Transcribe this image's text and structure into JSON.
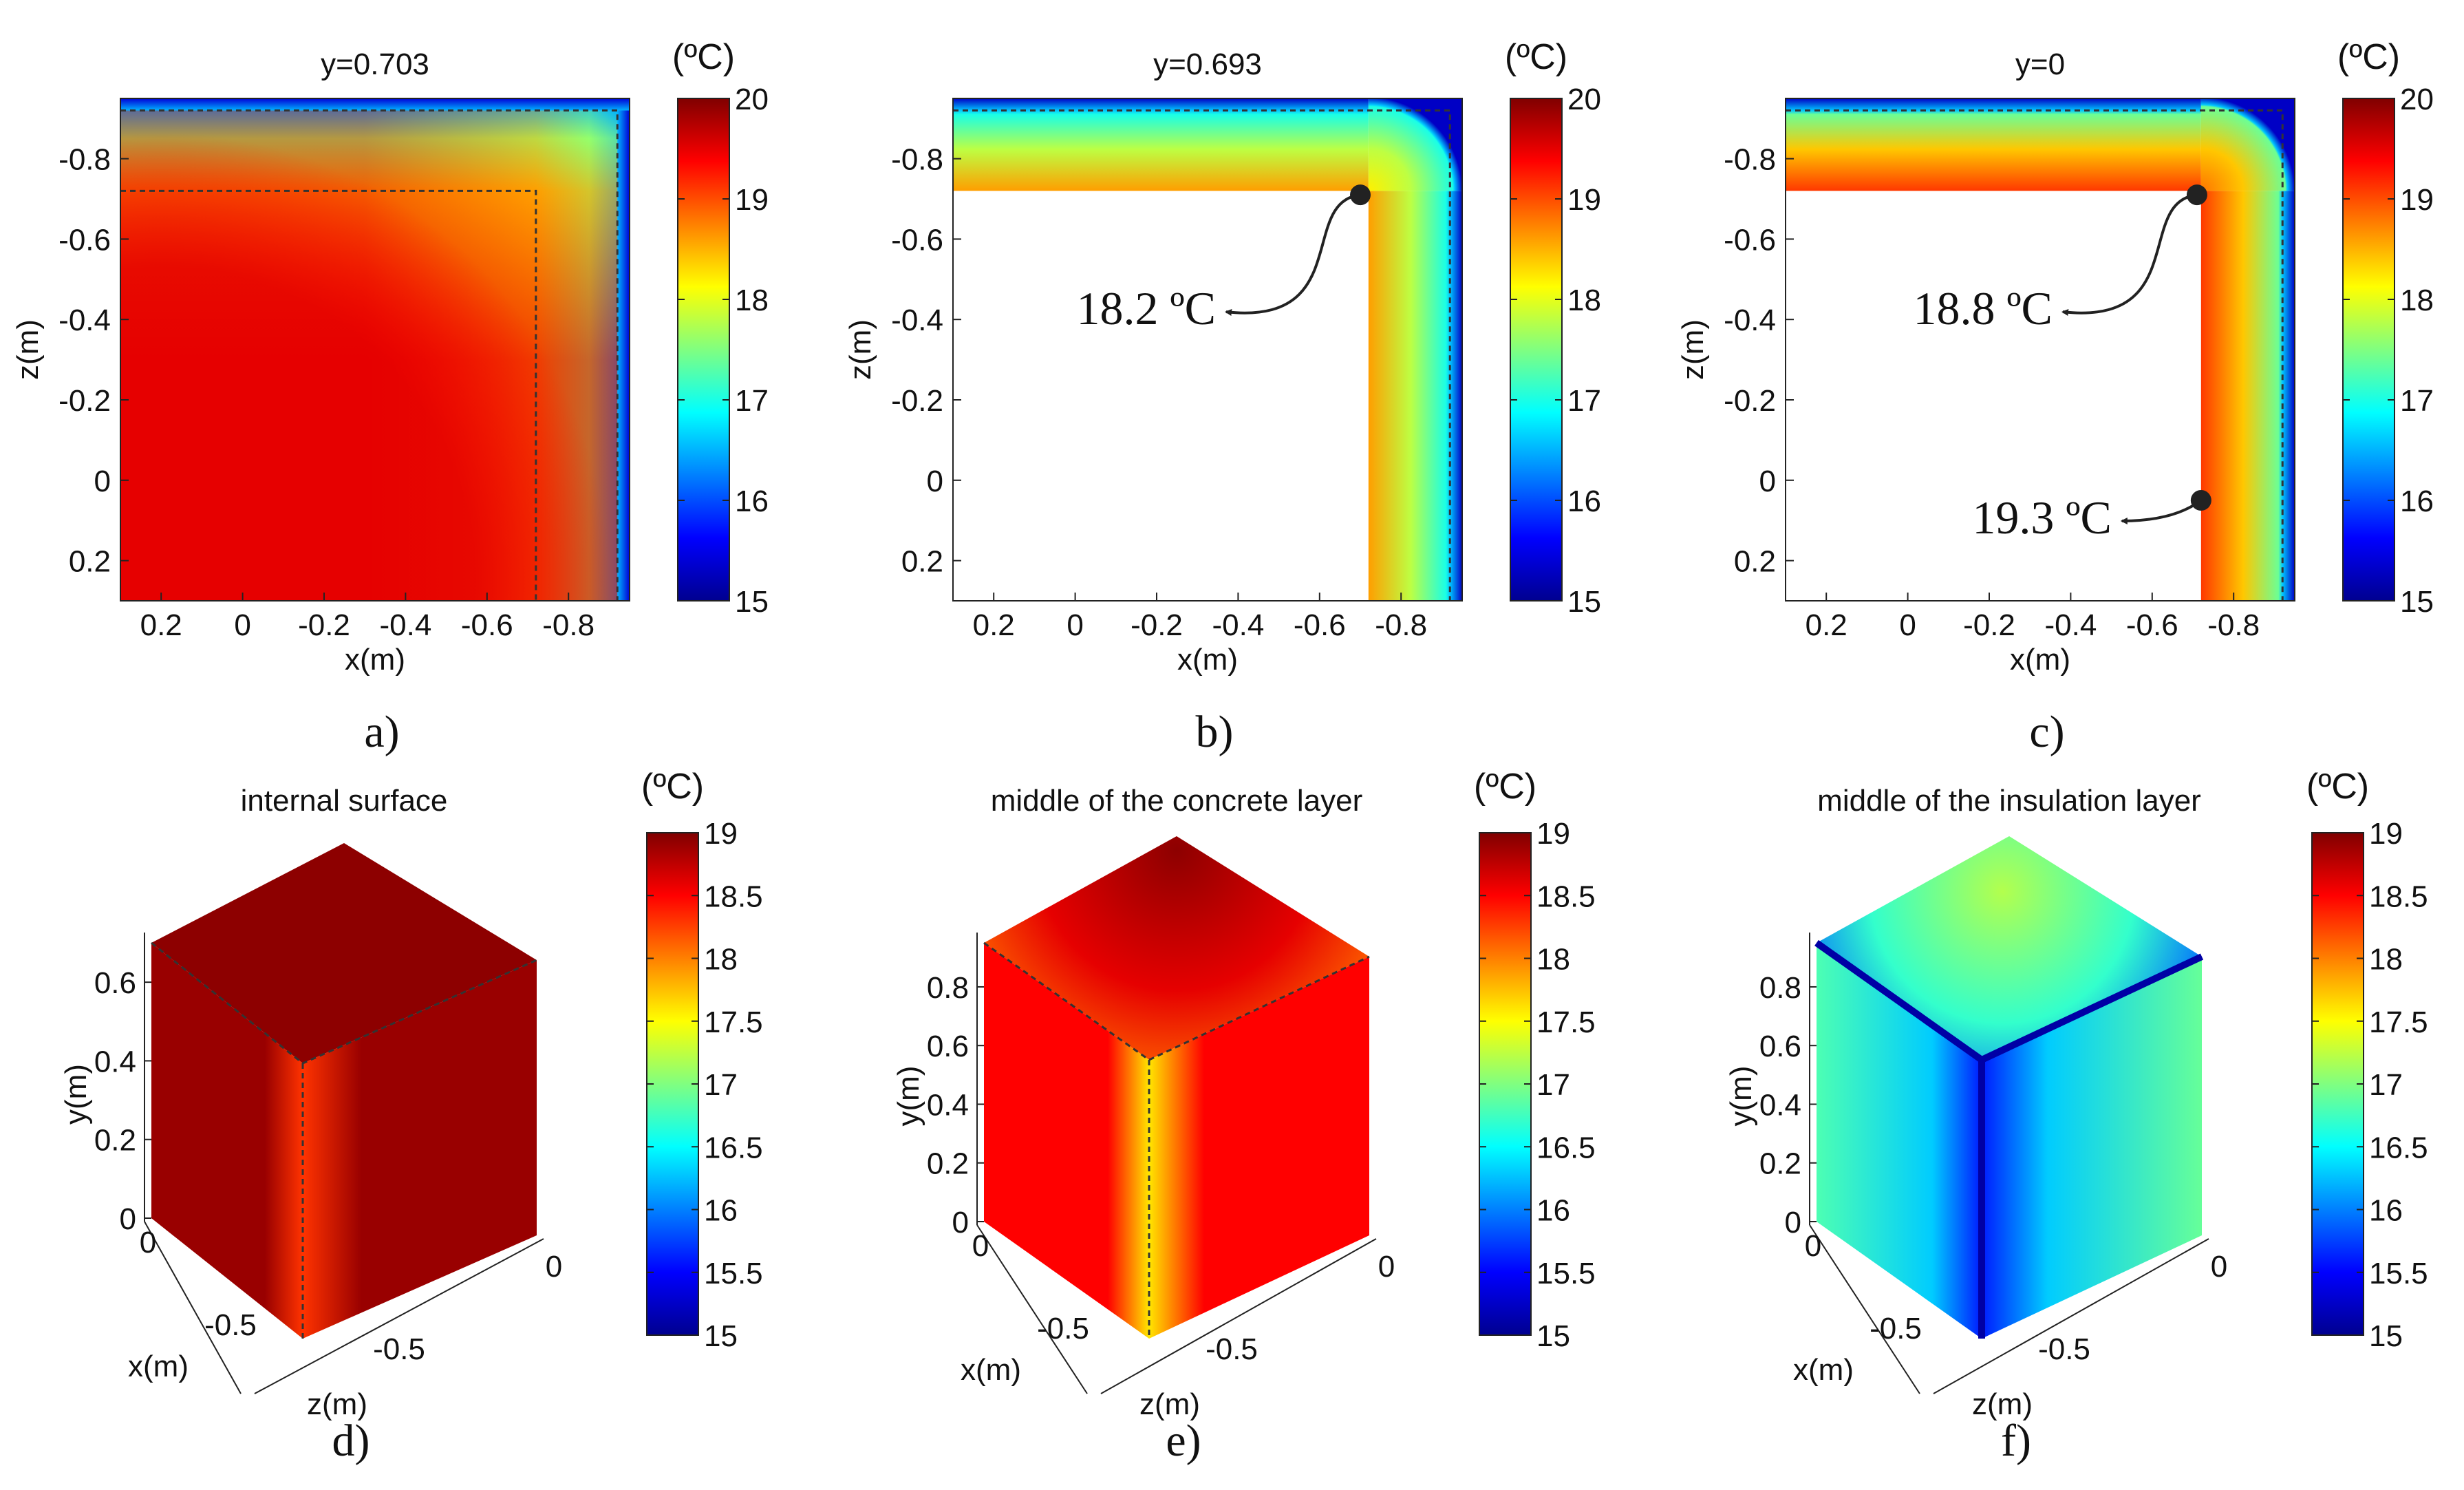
{
  "colors": {
    "jet": [
      "#00008f",
      "#0000ff",
      "#0080ff",
      "#00ffff",
      "#80ff80",
      "#ffff00",
      "#ff8000",
      "#ff0000",
      "#800000"
    ],
    "background": "#ffffff",
    "marker": "#222222",
    "dashed_line": "#333333"
  },
  "chart_data": [
    {
      "id": "a",
      "type": "heatmap",
      "panel_label": "a)",
      "title": "y=0.703",
      "xlabel": "x(m)",
      "ylabel": "z(m)",
      "xlim": [
        0.3,
        -0.95
      ],
      "ylim": [
        0.3,
        -0.95
      ],
      "xticks": [
        0.2,
        0,
        -0.2,
        -0.4,
        -0.6,
        -0.8
      ],
      "yticks": [
        -0.8,
        -0.6,
        -0.4,
        -0.2,
        0,
        0.2
      ],
      "colorbar": {
        "unit": "(ºC)",
        "min": 15,
        "max": 20,
        "ticks": [
          15,
          16,
          17,
          18,
          19,
          20
        ]
      },
      "temperature_field": {
        "interior_C": 19.4,
        "wall_corner_C": 18.2,
        "outer_surface_C": 16.5
      },
      "annotations": []
    },
    {
      "id": "b",
      "type": "heatmap",
      "panel_label": "b)",
      "title": "y=0.693",
      "xlabel": "x(m)",
      "ylabel": "z(m)",
      "xlim": [
        0.3,
        -0.95
      ],
      "ylim": [
        0.3,
        -0.95
      ],
      "xticks": [
        0.2,
        0,
        -0.2,
        -0.4,
        -0.6,
        -0.8
      ],
      "yticks": [
        -0.8,
        -0.6,
        -0.4,
        -0.2,
        0,
        0.2
      ],
      "colorbar": {
        "unit": "(ºC)",
        "min": 15,
        "max": 20,
        "ticks": [
          15,
          16,
          17,
          18,
          19,
          20
        ]
      },
      "temperature_field": {
        "inner_surface_C": 18.6,
        "outer_surface_C": 16.5
      },
      "annotations": [
        {
          "text": "18.2 ºC",
          "x": -0.7,
          "z": -0.71,
          "value_C": 18.2
        }
      ]
    },
    {
      "id": "c",
      "type": "heatmap",
      "panel_label": "c)",
      "title": "y=0",
      "xlabel": "x(m)",
      "ylabel": "z(m)",
      "xlim": [
        0.3,
        -0.95
      ],
      "ylim": [
        0.3,
        -0.95
      ],
      "xticks": [
        0.2,
        0,
        -0.2,
        -0.4,
        -0.6,
        -0.8
      ],
      "yticks": [
        -0.8,
        -0.6,
        -0.4,
        -0.2,
        0,
        0.2
      ],
      "colorbar": {
        "unit": "(ºC)",
        "min": 15,
        "max": 20,
        "ticks": [
          15,
          16,
          17,
          18,
          19,
          20
        ]
      },
      "temperature_field": {
        "inner_surface_C": 19.1,
        "outer_surface_C": 16.5
      },
      "annotations": [
        {
          "text": "18.8 ºC",
          "x": -0.71,
          "z": -0.71,
          "value_C": 18.8
        },
        {
          "text": "19.3 ºC",
          "x": -0.72,
          "z": 0.05,
          "value_C": 19.3
        }
      ]
    },
    {
      "id": "d",
      "type": "heatmap",
      "panel_label": "d)",
      "title": "internal surface",
      "xlabel": "x(m)",
      "ylabel": "y(m)",
      "zlabel": "z(m)",
      "yticks": [
        0,
        0.2,
        0.4,
        0.6
      ],
      "xticks": [
        0,
        -0.5
      ],
      "zticks": [
        0,
        -0.5
      ],
      "colorbar": {
        "unit": "(ºC)",
        "min": 15,
        "max": 19,
        "ticks": [
          15,
          15.5,
          16,
          16.5,
          17,
          17.5,
          18,
          18.5,
          19
        ]
      },
      "face_temperature_C": 18.9,
      "edge_temperature_C": 18.3
    },
    {
      "id": "e",
      "type": "heatmap",
      "panel_label": "e)",
      "title": "middle of the concrete layer",
      "xlabel": "x(m)",
      "ylabel": "y(m)",
      "zlabel": "z(m)",
      "yticks": [
        0,
        0.2,
        0.4,
        0.6,
        0.8
      ],
      "xticks": [
        0,
        -0.5
      ],
      "zticks": [
        0,
        -0.5
      ],
      "colorbar": {
        "unit": "(ºC)",
        "min": 15,
        "max": 19,
        "ticks": [
          15,
          15.5,
          16,
          16.5,
          17,
          17.5,
          18,
          18.5,
          19
        ]
      },
      "face_temperature_C": 18.5,
      "edge_temperature_C": 17.6
    },
    {
      "id": "f",
      "type": "heatmap",
      "panel_label": "f)",
      "title": "middle of the insulation layer",
      "xlabel": "x(m)",
      "ylabel": "y(m)",
      "zlabel": "z(m)",
      "yticks": [
        0,
        0.2,
        0.4,
        0.6,
        0.8
      ],
      "xticks": [
        0,
        -0.5
      ],
      "zticks": [
        0,
        -0.5
      ],
      "colorbar": {
        "unit": "(ºC)",
        "min": 15,
        "max": 19,
        "ticks": [
          15,
          15.5,
          16,
          16.5,
          17,
          17.5,
          18,
          18.5,
          19
        ]
      },
      "face_temperature_C": 16.6,
      "edge_temperature_C": 15.2
    }
  ]
}
